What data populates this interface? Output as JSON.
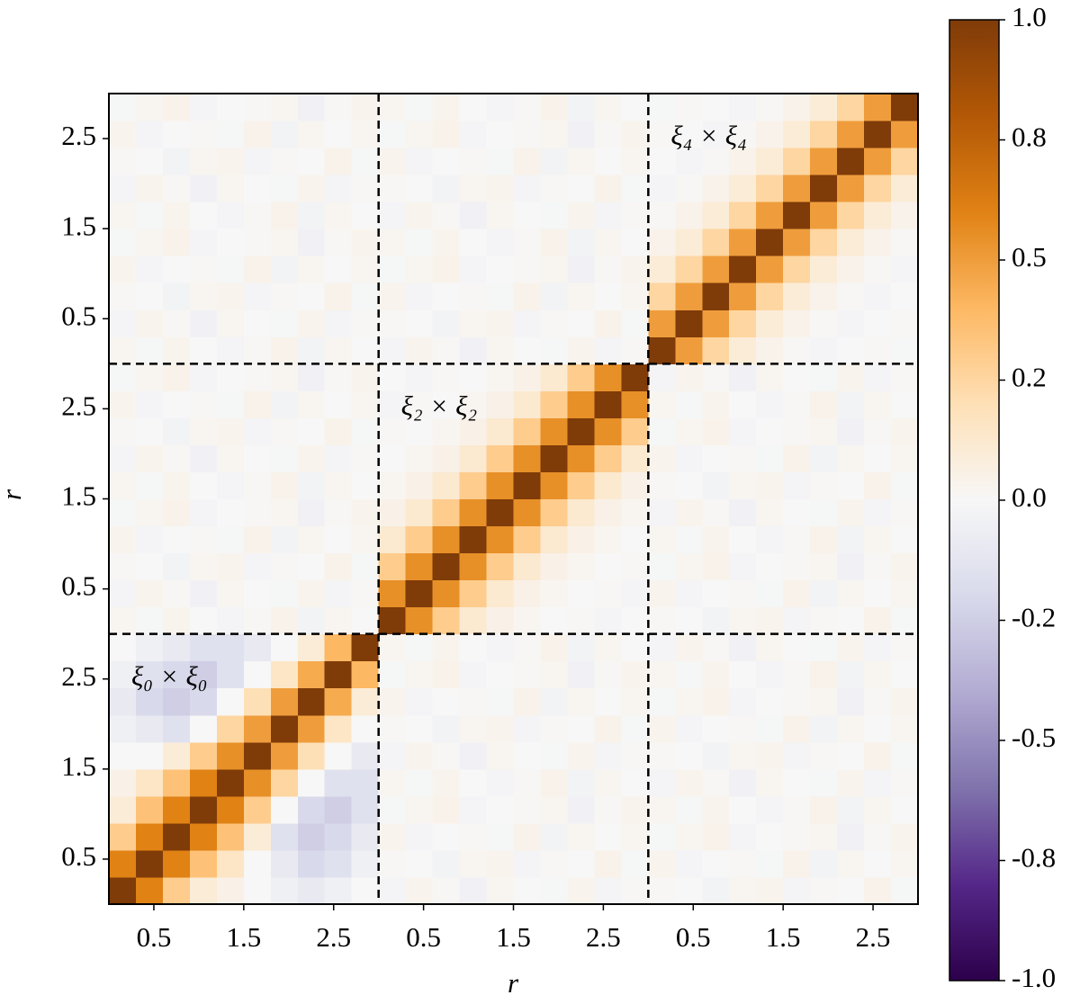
{
  "chart_data": {
    "type": "heatmap",
    "xlabel": "r",
    "ylabel": "r",
    "annotations": [
      "ξ₀ × ξ₀",
      "ξ₂ × ξ₂",
      "ξ₄ × ξ₄"
    ],
    "xlim": [
      0,
      9
    ],
    "ylim": [
      0,
      9
    ],
    "xticks": [
      0.5,
      1.5,
      2.5,
      {
        "value": 3.5,
        "label": "0.5"
      },
      {
        "value": 4.5,
        "label": "1.5"
      },
      {
        "value": 5.5,
        "label": "2.5"
      },
      {
        "value": 6.5,
        "label": "0.5"
      },
      {
        "value": 7.5,
        "label": "1.5"
      },
      {
        "value": 8.5,
        "label": "2.5"
      }
    ],
    "yticks": [
      0.5,
      1.5,
      2.5,
      {
        "value": 3.5,
        "label": "0.5"
      },
      {
        "value": 4.5,
        "label": "1.5"
      },
      {
        "value": 5.5,
        "label": "2.5"
      },
      {
        "value": 6.5,
        "label": "0.5"
      },
      {
        "value": 7.5,
        "label": "1.5"
      },
      {
        "value": 8.5,
        "label": "2.5"
      }
    ],
    "zlim": [
      -1,
      1
    ],
    "colormap": [
      "#2d004b",
      "#542788",
      "#8073ac",
      "#b2abd2",
      "#d8daeb",
      "#f7f7f7",
      "#fee0b6",
      "#fdb863",
      "#e08214",
      "#b35806",
      "#7f3b08"
    ],
    "colorbar_ticks": [
      {
        "value": -1,
        "label": "-1.0"
      },
      {
        "value": -0.75,
        "label": "-0.8"
      },
      {
        "value": -0.5,
        "label": "-0.5"
      },
      {
        "value": -0.25,
        "label": "-0.2"
      },
      {
        "value": 0,
        "label": "0.0"
      },
      {
        "value": 0.25,
        "label": "0.2"
      },
      {
        "value": 0.5,
        "label": "0.5"
      },
      {
        "value": 0.75,
        "label": "0.8"
      },
      {
        "value": 1,
        "label": "1.0"
      }
    ],
    "z": [
      [
        1,
        0.6,
        0.3,
        0.1,
        0.05,
        0,
        -0.05,
        -0.1,
        -0.05,
        0,
        -0.02,
        0.03,
        0.01,
        -0.04,
        0.02,
        0,
        -0.01,
        0.03,
        -0.02,
        0.01,
        0.01,
        0,
        -0.03,
        0.02,
        0.03,
        -0.02,
        0.01,
        0,
        0.04,
        -0.01
      ],
      [
        0.6,
        1,
        0.6,
        0.35,
        0.15,
        0,
        -0.1,
        -0.2,
        -0.15,
        -0.05,
        0.01,
        0,
        -0.03,
        0.02,
        0.03,
        -0.02,
        0.01,
        0,
        0.04,
        -0.01,
        0.03,
        -0.02,
        0,
        0.01,
        -0.01,
        0.04,
        -0.03,
        0.02,
        0,
        0.02
      ],
      [
        0.3,
        0.6,
        1,
        0.6,
        0.35,
        0.1,
        -0.15,
        -0.25,
        -0.2,
        -0.1,
        0.03,
        -0.02,
        0,
        0.01,
        -0.01,
        0.04,
        -0.03,
        0.02,
        0,
        0.02,
        -0.01,
        0.02,
        0.04,
        -0.02,
        0,
        0.01,
        0.02,
        -0.04,
        0.01,
        0.03
      ],
      [
        0.1,
        0.35,
        0.6,
        1,
        0.6,
        0.3,
        0,
        -0.2,
        -0.25,
        -0.15,
        -0.01,
        0.02,
        0.04,
        -0.02,
        0,
        0.01,
        0.02,
        -0.04,
        0.01,
        0.03,
        0.02,
        -0.01,
        0.03,
        0,
        -0.02,
        0.01,
        0.04,
        -0.03,
        0.02,
        0
      ],
      [
        0.05,
        0.15,
        0.35,
        0.6,
        1,
        0.55,
        0.25,
        0,
        -0.15,
        -0.15,
        0.02,
        -0.01,
        0.03,
        0,
        -0.02,
        0.01,
        0.04,
        -0.03,
        0.02,
        0,
        -0.02,
        0.03,
        0.01,
        -0.04,
        0.02,
        0,
        -0.01,
        0.03,
        -0.02,
        0.01
      ],
      [
        0,
        0,
        0.1,
        0.3,
        0.55,
        1,
        0.5,
        0.2,
        0,
        -0.1,
        -0.02,
        0.03,
        0.01,
        -0.04,
        0.02,
        0,
        -0.01,
        0.03,
        -0.02,
        0.01,
        0.01,
        0,
        -0.03,
        0.02,
        0.03,
        -0.02,
        0.01,
        0,
        0.04,
        -0.01
      ],
      [
        -0.05,
        -0.1,
        -0.15,
        0,
        0.25,
        0.5,
        1,
        0.5,
        0.15,
        0,
        0.01,
        0,
        -0.03,
        0.02,
        0.03,
        -0.02,
        0.01,
        0,
        0.04,
        -0.01,
        0.03,
        -0.02,
        0,
        0.01,
        -0.01,
        0.04,
        -0.03,
        0.02,
        0,
        0.02
      ],
      [
        -0.1,
        -0.2,
        -0.25,
        -0.2,
        0,
        0.2,
        0.5,
        1,
        0.45,
        0.1,
        0.03,
        -0.02,
        0,
        0.01,
        -0.01,
        0.04,
        -0.03,
        0.02,
        0,
        0.02,
        -0.01,
        0.02,
        0.04,
        -0.02,
        0,
        0.01,
        0.02,
        -0.04,
        0.01,
        0.03
      ],
      [
        -0.05,
        -0.15,
        -0.2,
        -0.25,
        -0.15,
        0,
        0.15,
        0.45,
        1,
        0.4,
        -0.01,
        0.02,
        0.04,
        -0.02,
        0,
        0.01,
        0.02,
        -0.04,
        0.01,
        0.03,
        0.02,
        -0.01,
        0.03,
        0,
        -0.02,
        0.01,
        0.04,
        -0.03,
        0.02,
        0
      ],
      [
        0,
        -0.05,
        -0.1,
        -0.15,
        -0.15,
        -0.1,
        0,
        0.1,
        0.4,
        1,
        0.02,
        -0.01,
        0.03,
        0,
        -0.02,
        0.01,
        0.04,
        -0.03,
        0.02,
        0,
        -0.02,
        0.03,
        0.01,
        -0.04,
        0.02,
        0,
        -0.01,
        0.03,
        -0.02,
        0.01
      ],
      [
        0.02,
        -0.01,
        0.03,
        0,
        -0.02,
        0.01,
        0.04,
        -0.03,
        0.02,
        0,
        1,
        0.55,
        0.3,
        0.12,
        0.05,
        0.02,
        0,
        0.01,
        -0.02,
        0,
        0.01,
        0,
        -0.03,
        0.02,
        0.03,
        -0.02,
        0.01,
        0,
        0.04,
        -0.01
      ],
      [
        -0.02,
        0.03,
        0.01,
        -0.04,
        0.02,
        0,
        -0.01,
        0.03,
        -0.02,
        0.01,
        0.55,
        1,
        0.55,
        0.3,
        0.12,
        0.05,
        0.02,
        0,
        0.01,
        -0.02,
        0.03,
        -0.02,
        0,
        0.01,
        -0.01,
        0.04,
        -0.03,
        0.02,
        0,
        0.02
      ],
      [
        0.01,
        0,
        -0.03,
        0.02,
        0.03,
        -0.02,
        0.01,
        0,
        0.04,
        -0.01,
        0.3,
        0.55,
        1,
        0.55,
        0.3,
        0.12,
        0.05,
        0.02,
        0,
        0.01,
        -0.01,
        0.02,
        0.04,
        -0.02,
        0,
        0.01,
        0.02,
        -0.04,
        0.01,
        0.03
      ],
      [
        0.03,
        -0.02,
        0,
        0.01,
        -0.01,
        0.04,
        -0.03,
        0.02,
        0,
        0.02,
        0.12,
        0.3,
        0.55,
        1,
        0.55,
        0.3,
        0.12,
        0.05,
        0.02,
        0,
        0.02,
        -0.01,
        0.03,
        0,
        -0.02,
        0.01,
        0.04,
        -0.03,
        0.02,
        0
      ],
      [
        -0.01,
        0.02,
        0.04,
        -0.02,
        0,
        0.01,
        0.02,
        -0.04,
        0.01,
        0.03,
        0.05,
        0.12,
        0.3,
        0.55,
        1,
        0.55,
        0.3,
        0.12,
        0.05,
        0.02,
        -0.02,
        0.03,
        0.01,
        -0.04,
        0.02,
        0,
        -0.01,
        0.03,
        -0.02,
        0.01
      ],
      [
        0.02,
        -0.01,
        0.03,
        0,
        -0.02,
        0.01,
        0.04,
        -0.03,
        0.02,
        0,
        0.02,
        0.05,
        0.12,
        0.3,
        0.55,
        1,
        0.55,
        0.3,
        0.12,
        0.05,
        0.01,
        0,
        -0.03,
        0.02,
        0.03,
        -0.02,
        0.01,
        0,
        0.04,
        -0.01
      ],
      [
        -0.02,
        0.03,
        0.01,
        -0.04,
        0.02,
        0,
        -0.01,
        0.03,
        -0.02,
        0.01,
        0,
        0.02,
        0.05,
        0.12,
        0.3,
        0.55,
        1,
        0.55,
        0.3,
        0.12,
        0.03,
        -0.02,
        0,
        0.01,
        -0.01,
        0.04,
        -0.03,
        0.02,
        0,
        0.02
      ],
      [
        0.01,
        0,
        -0.03,
        0.02,
        0.03,
        -0.02,
        0.01,
        0,
        0.04,
        -0.01,
        0.01,
        0,
        0.02,
        0.05,
        0.12,
        0.3,
        0.55,
        1,
        0.55,
        0.3,
        -0.01,
        0.02,
        0.04,
        -0.02,
        0,
        0.01,
        0.02,
        -0.04,
        0.01,
        0.03
      ],
      [
        0.03,
        -0.02,
        0,
        0.01,
        -0.01,
        0.04,
        -0.03,
        0.02,
        0,
        0.02,
        -0.02,
        0.01,
        0,
        0.02,
        0.05,
        0.12,
        0.3,
        0.55,
        1,
        0.55,
        0.02,
        -0.01,
        0.03,
        0,
        -0.02,
        0.01,
        0.04,
        -0.03,
        0.02,
        0
      ],
      [
        -0.01,
        0.02,
        0.04,
        -0.02,
        0,
        0.01,
        0.02,
        -0.04,
        0.01,
        0.03,
        0,
        -0.02,
        0.01,
        0,
        0.02,
        0.05,
        0.12,
        0.3,
        0.55,
        1,
        -0.02,
        0.03,
        0.01,
        -0.04,
        0.02,
        0,
        -0.01,
        0.03,
        -0.02,
        0.01
      ],
      [
        0.02,
        -0.01,
        0.03,
        0,
        -0.02,
        0.01,
        0.04,
        -0.03,
        0.02,
        0,
        -0.02,
        0.03,
        0.01,
        -0.04,
        0.02,
        0,
        -0.01,
        0.03,
        -0.02,
        0.01,
        1,
        0.5,
        0.25,
        0.1,
        0.04,
        0.01,
        -0.02,
        0,
        0.01,
        -0.01
      ],
      [
        -0.02,
        0.03,
        0.01,
        -0.04,
        0.02,
        0,
        -0.01,
        0.03,
        -0.02,
        0.01,
        0.01,
        0,
        -0.03,
        0.02,
        0.03,
        -0.02,
        0.01,
        0,
        0.04,
        -0.01,
        0.5,
        1,
        0.5,
        0.25,
        0.1,
        0.04,
        0.01,
        -0.02,
        0,
        0.01
      ],
      [
        0.01,
        0,
        -0.03,
        0.02,
        0.03,
        -0.02,
        0.01,
        0,
        0.04,
        -0.01,
        0.03,
        -0.02,
        0,
        0.01,
        -0.01,
        0.04,
        -0.03,
        0.02,
        0,
        0.02,
        0.25,
        0.5,
        1,
        0.5,
        0.25,
        0.1,
        0.04,
        0.01,
        -0.02,
        0
      ],
      [
        0.03,
        -0.02,
        0,
        0.01,
        -0.01,
        0.04,
        -0.03,
        0.02,
        0,
        0.02,
        -0.01,
        0.02,
        0.04,
        -0.02,
        0,
        0.01,
        0.02,
        -0.04,
        0.01,
        0.03,
        0.1,
        0.25,
        0.5,
        1,
        0.5,
        0.25,
        0.1,
        0.04,
        0.01,
        -0.02
      ],
      [
        -0.01,
        0.02,
        0.04,
        -0.02,
        0,
        0.01,
        0.02,
        -0.04,
        0.01,
        0.03,
        0.02,
        -0.01,
        0.03,
        0,
        -0.02,
        0.01,
        0.04,
        -0.03,
        0.02,
        0,
        0.04,
        0.1,
        0.25,
        0.5,
        1,
        0.5,
        0.25,
        0.1,
        0.04,
        0.01
      ],
      [
        0.02,
        -0.01,
        0.03,
        0,
        -0.02,
        0.01,
        0.04,
        -0.03,
        0.02,
        0,
        -0.02,
        0.03,
        0.01,
        -0.04,
        0.02,
        0,
        -0.01,
        0.03,
        -0.02,
        0.01,
        0.01,
        0.04,
        0.1,
        0.25,
        0.5,
        1,
        0.5,
        0.25,
        0.1,
        0.04
      ],
      [
        -0.02,
        0.03,
        0.01,
        -0.04,
        0.02,
        0,
        -0.01,
        0.03,
        -0.02,
        0.01,
        0.01,
        0,
        -0.03,
        0.02,
        0.03,
        -0.02,
        0.01,
        0,
        0.04,
        -0.01,
        -0.02,
        0.01,
        0.04,
        0.1,
        0.25,
        0.5,
        1,
        0.5,
        0.25,
        0.1
      ],
      [
        0.01,
        0,
        -0.03,
        0.02,
        0.03,
        -0.02,
        0.01,
        0,
        0.04,
        -0.01,
        0.03,
        -0.02,
        0,
        0.01,
        -0.01,
        0.04,
        -0.03,
        0.02,
        0,
        0.02,
        0,
        -0.02,
        0.01,
        0.04,
        0.1,
        0.25,
        0.5,
        1,
        0.5,
        0.25
      ],
      [
        0.03,
        -0.02,
        0,
        0.01,
        -0.01,
        0.04,
        -0.03,
        0.02,
        0,
        0.02,
        -0.01,
        0.02,
        0.04,
        -0.02,
        0,
        0.01,
        0.02,
        -0.04,
        0.01,
        0.03,
        0.01,
        0,
        -0.02,
        0.01,
        0.04,
        0.1,
        0.25,
        0.5,
        1,
        0.5
      ],
      [
        -0.01,
        0.02,
        0.04,
        -0.02,
        0,
        0.01,
        0.02,
        -0.04,
        0.01,
        0.03,
        0.02,
        -0.01,
        0.03,
        0,
        -0.02,
        0.01,
        0.04,
        -0.03,
        0.02,
        0,
        -0.01,
        0.01,
        0,
        -0.02,
        0.01,
        0.04,
        0.1,
        0.25,
        0.5,
        1
      ]
    ]
  }
}
